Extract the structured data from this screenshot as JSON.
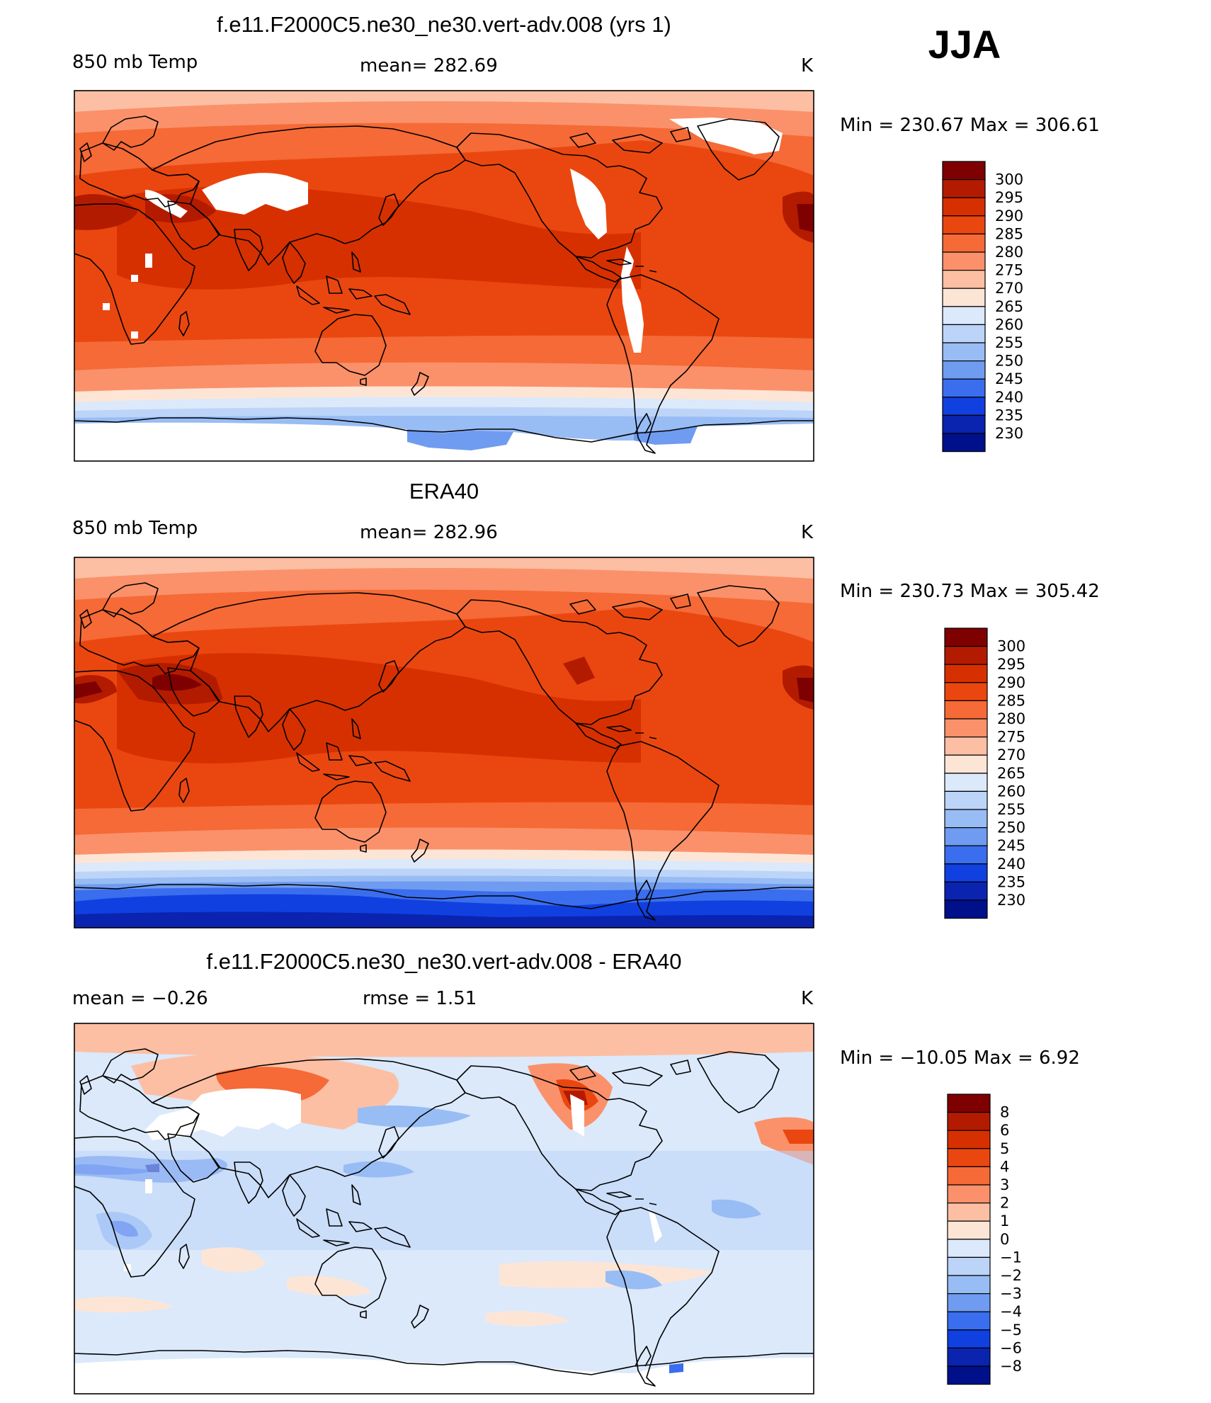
{
  "season": "JJA",
  "panels": [
    {
      "id": "model",
      "title": "f.e11.F2000C5.ne30_ne30.vert-adv.008 (yrs 1)",
      "left": "850 mb Temp",
      "center": "mean=  282.69",
      "right": "K",
      "minmax": "Min  =  230.67  Max  =  306.61",
      "legend": [
        "300",
        "295",
        "290",
        "285",
        "280",
        "275",
        "270",
        "265",
        "260",
        "255",
        "250",
        "245",
        "240",
        "235",
        "230"
      ]
    },
    {
      "id": "obs",
      "title": "ERA40",
      "left": "850 mb Temp",
      "center": "mean=  282.96",
      "right": "K",
      "minmax": "Min  =  230.73  Max  =  305.42",
      "legend": [
        "300",
        "295",
        "290",
        "285",
        "280",
        "275",
        "270",
        "265",
        "260",
        "255",
        "250",
        "245",
        "240",
        "235",
        "230"
      ]
    },
    {
      "id": "diff",
      "title": "f.e11.F2000C5.ne30_ne30.vert-adv.008 - ERA40",
      "left": "mean  =     −0.26",
      "center": "rmse  =     1.51",
      "right": "K",
      "minmax": "Min  =  −10.05  Max  =     6.92",
      "legend": [
        "8",
        "6",
        "5",
        "4",
        "3",
        "2",
        "1",
        "0",
        "−1",
        "−2",
        "−3",
        "−4",
        "−5",
        "−6",
        "−8"
      ]
    }
  ],
  "colors": {
    "scale": [
      "#7f0000",
      "#b31b00",
      "#d73000",
      "#ea4710",
      "#f56a36",
      "#fb916a",
      "#fcbfa3",
      "#fde5d6",
      "#dbe9fb",
      "#bcd4f8",
      "#98bcf4",
      "#6f9cf0",
      "#3a6eee",
      "#1140e0",
      "#0a24b0",
      "#00108a"
    ],
    "masked": "#ffffff",
    "frame": "#000000"
  }
}
